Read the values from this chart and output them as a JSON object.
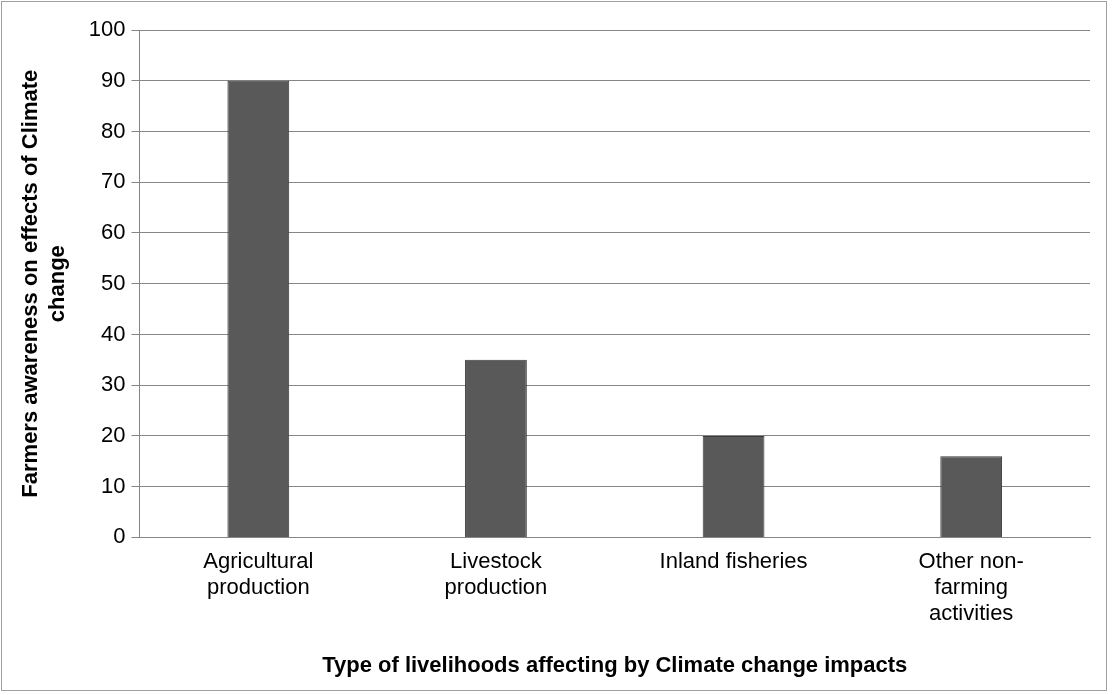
{
  "chart_data": {
    "type": "bar",
    "xlabel": "Type of livelihoods affecting by Climate change impacts",
    "ylabel": "Farmers awareness on effects of Climate change",
    "categories": [
      "Agricultural production",
      "Livestock production",
      "Inland fisheries",
      "Other non-farming activities"
    ],
    "values": [
      90,
      35,
      20,
      16
    ],
    "color": "#595959",
    "ylim": [
      0,
      100
    ],
    "yticks": [
      0,
      10,
      20,
      30,
      40,
      50,
      60,
      70,
      80,
      90,
      100
    ],
    "grid": "y",
    "legend": false
  }
}
